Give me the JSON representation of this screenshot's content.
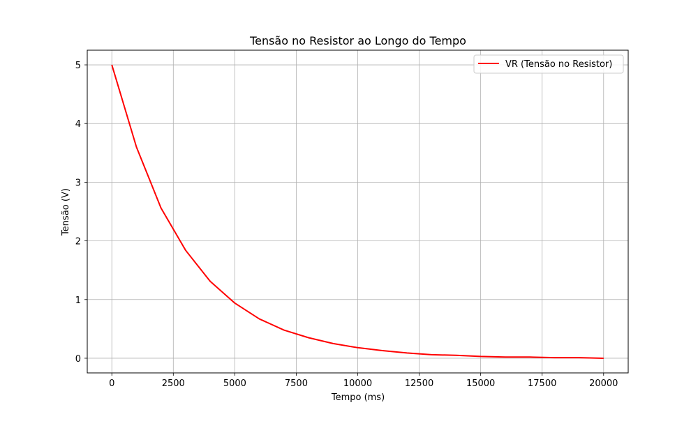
{
  "chart_data": {
    "type": "line",
    "title": "Tensão no Resistor ao Longo do Tempo",
    "xlabel": "Tempo (ms)",
    "ylabel": "Tensão (V)",
    "xlim": [
      -1000,
      21000
    ],
    "ylim": [
      -0.25,
      5.25
    ],
    "xticks": [
      0,
      2500,
      5000,
      7500,
      10000,
      12500,
      15000,
      17500,
      20000
    ],
    "yticks": [
      0,
      1,
      2,
      3,
      4,
      5
    ],
    "grid": true,
    "legend_position": "top-right",
    "series": [
      {
        "name": "VR (Tensão no Resistor)",
        "color": "#ff0000",
        "x": [
          0,
          1000,
          2000,
          3000,
          4000,
          5000,
          6000,
          7000,
          8000,
          9000,
          10000,
          11000,
          12000,
          13000,
          14000,
          15000,
          16000,
          17000,
          18000,
          19000,
          20000
        ],
        "y": [
          5.0,
          3.6,
          2.56,
          1.84,
          1.31,
          0.94,
          0.67,
          0.48,
          0.35,
          0.25,
          0.18,
          0.13,
          0.09,
          0.06,
          0.05,
          0.03,
          0.02,
          0.02,
          0.01,
          0.01,
          0.0
        ]
      }
    ]
  }
}
